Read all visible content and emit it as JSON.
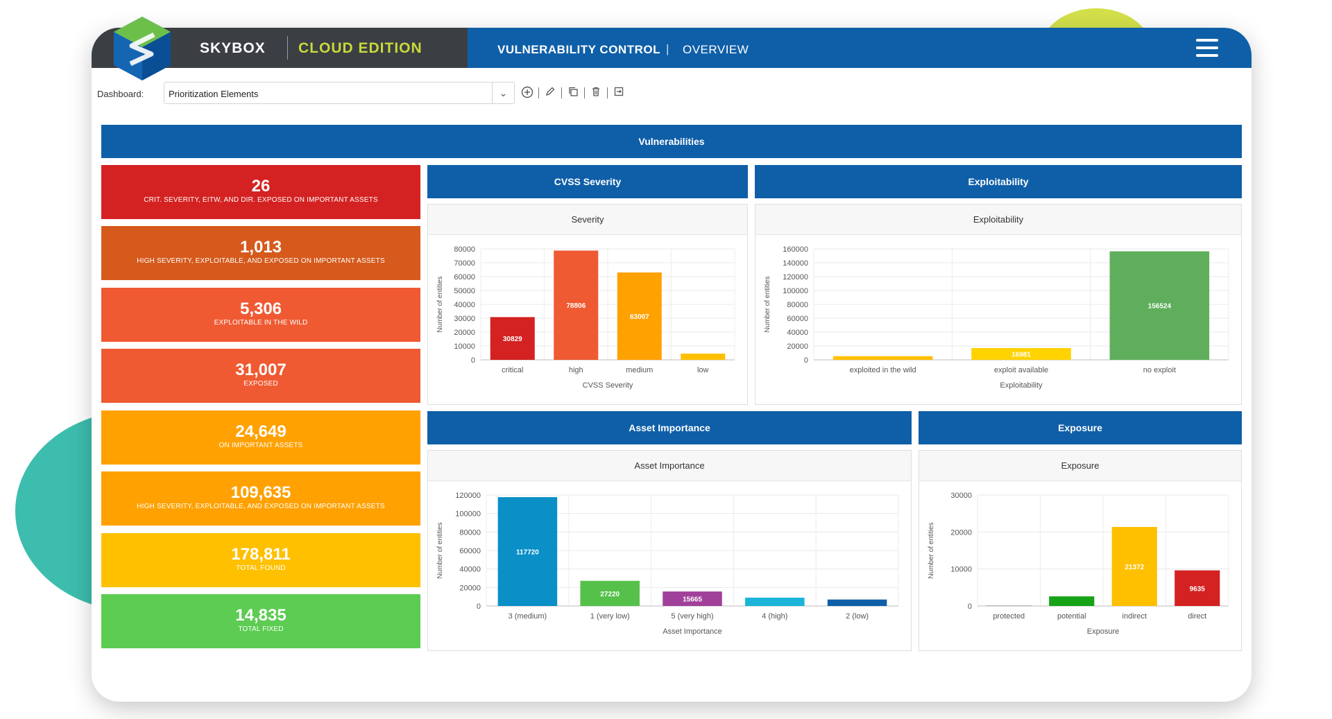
{
  "brand": {
    "name": "SKYBOX",
    "edition": "CLOUD EDITION"
  },
  "nav": {
    "title": "VULNERABILITY CONTROL",
    "separator": "|",
    "subtitle": "OVERVIEW"
  },
  "toolbar": {
    "dashboard_label": "Dashboard:",
    "dashboard_value": "Prioritization Elements",
    "icons": [
      "add-circle-icon",
      "edit-pencil-icon",
      "copy-icon",
      "trash-icon",
      "export-icon"
    ]
  },
  "section_title": "Vulnerabilities",
  "kpis": [
    {
      "value": "26",
      "label": "CRIT. SEVERITY, EITW, AND DIR. EXPOSED ON IMPORTANT ASSETS",
      "color": "#d42222"
    },
    {
      "value": "1,013",
      "label": "HIGH SEVERITY, EXPLOITABLE, AND EXPOSED ON IMPORTANT ASSETS",
      "color": "#d55a1c"
    },
    {
      "value": "5,306",
      "label": "EXPLOITABLE IN THE WILD",
      "color": "#ef5a32"
    },
    {
      "value": "31,007",
      "label": "EXPOSED",
      "color": "#ef5a32"
    },
    {
      "value": "24,649",
      "label": "ON IMPORTANT ASSETS",
      "color": "#ffa100"
    },
    {
      "value": "109,635",
      "label": "HIGH SEVERITY, EXPLOITABLE, AND EXPOSED ON IMPORTANT ASSETS",
      "color": "#ffa100"
    },
    {
      "value": "178,811",
      "label": "TOTAL FOUND",
      "color": "#ffc000"
    },
    {
      "value": "14,835",
      "label": "TOTAL FIXED",
      "color": "#5ccc52"
    }
  ],
  "sections": {
    "cvss": "CVSS Severity",
    "exploitability": "Exploitability",
    "asset_importance": "Asset Importance",
    "exposure": "Exposure"
  },
  "chart_data": [
    {
      "type": "bar",
      "title": "Severity",
      "xlabel": "CVSS Severity",
      "ylabel": "Number of entities",
      "categories": [
        "critical",
        "high",
        "medium",
        "low"
      ],
      "values": [
        30829,
        78806,
        63007,
        4500
      ],
      "labels": [
        "30829",
        "78806",
        "63007",
        ""
      ],
      "colors": [
        "#d42222",
        "#ef5a32",
        "#ffa100",
        "#ffc000"
      ],
      "ylim": [
        0,
        80000
      ],
      "yticks": [
        0,
        10000,
        20000,
        30000,
        40000,
        50000,
        60000,
        70000,
        80000
      ],
      "grid": true
    },
    {
      "type": "bar",
      "title": "Exploitability",
      "xlabel": "Exploitability",
      "ylabel": "Number of entities",
      "categories": [
        "exploited in the wild",
        "exploit available",
        "no exploit"
      ],
      "values": [
        5306,
        16981,
        156524
      ],
      "labels": [
        "",
        "16981",
        "156524"
      ],
      "colors": [
        "#ffc000",
        "#ffd200",
        "#5fae5c"
      ],
      "ylim": [
        0,
        160000
      ],
      "yticks": [
        0,
        20000,
        40000,
        60000,
        80000,
        100000,
        120000,
        140000,
        160000
      ],
      "grid": true
    },
    {
      "type": "bar",
      "title": "Asset Importance",
      "xlabel": "Asset Importance",
      "ylabel": "Number of entities",
      "categories": [
        "3 (medium)",
        "1 (very low)",
        "5 (very high)",
        "4 (high)",
        "2 (low)"
      ],
      "values": [
        117720,
        27220,
        15665,
        9000,
        7000
      ],
      "labels": [
        "117720",
        "27220",
        "15665",
        "",
        ""
      ],
      "colors": [
        "#0a8fc7",
        "#55c14a",
        "#a0409a",
        "#1bb5d9",
        "#0f5fa8"
      ],
      "ylim": [
        0,
        120000
      ],
      "yticks": [
        0,
        20000,
        40000,
        60000,
        80000,
        100000,
        120000
      ],
      "grid": true
    },
    {
      "type": "bar",
      "title": "Exposure",
      "xlabel": "Exposure",
      "ylabel": "Number of entities",
      "categories": [
        "protected",
        "potential",
        "indirect",
        "direct"
      ],
      "values": [
        150,
        2600,
        21372,
        9635
      ],
      "labels": [
        "",
        "",
        "21372",
        "9635"
      ],
      "colors": [
        "#9aa0a6",
        "#17a317",
        "#ffc000",
        "#d42222"
      ],
      "ylim": [
        0,
        30000
      ],
      "yticks": [
        0,
        10000,
        20000,
        30000
      ],
      "grid": true
    }
  ]
}
